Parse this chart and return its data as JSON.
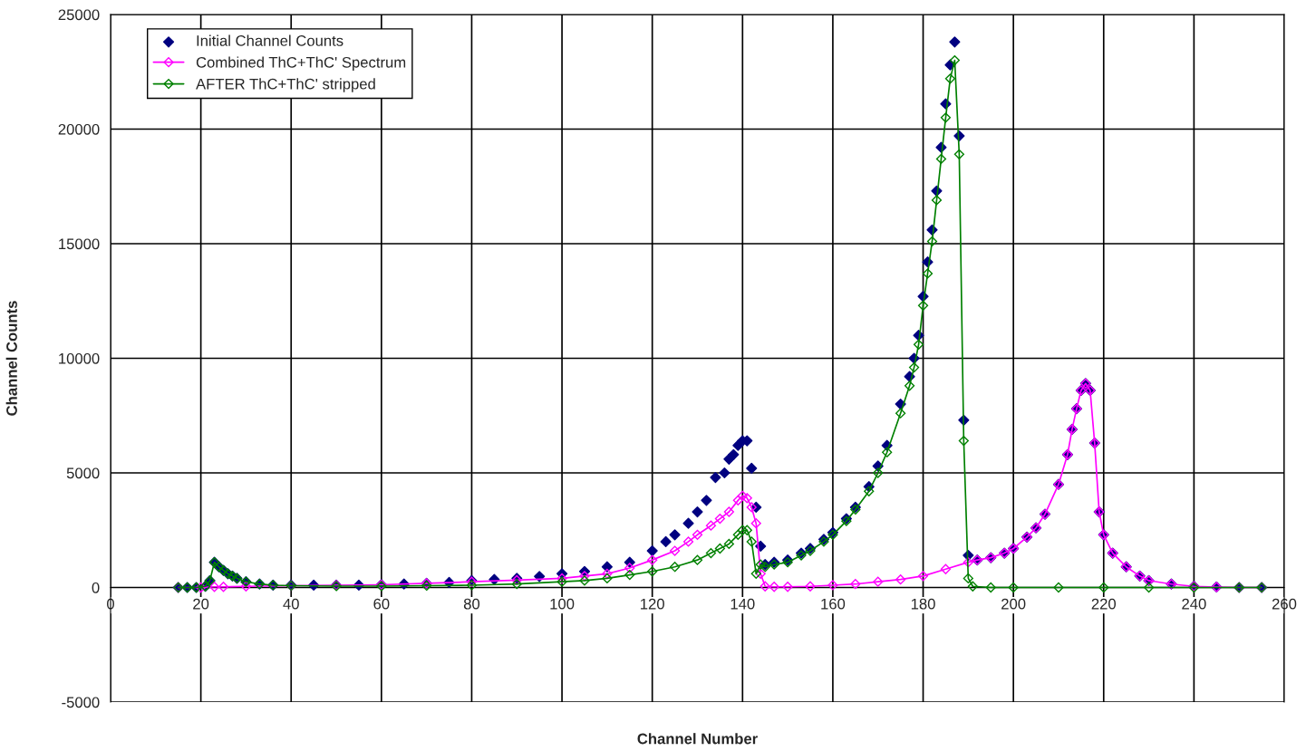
{
  "chart_data": {
    "type": "line",
    "xlabel": "Channel Number",
    "ylabel": "Channel Counts",
    "xlim": [
      0,
      260
    ],
    "xticks": [
      0,
      20,
      40,
      60,
      80,
      100,
      120,
      140,
      160,
      180,
      200,
      220,
      240,
      260
    ],
    "ylim": [
      -5000,
      25000
    ],
    "yticks": [
      -5000,
      0,
      5000,
      10000,
      15000,
      20000,
      25000
    ],
    "grid": true,
    "legend": "top left",
    "marker": "diamond",
    "series": [
      {
        "name": "Initial Channel Counts",
        "type": "scatter",
        "color": "#000080",
        "x": [
          15,
          17,
          19,
          21,
          22,
          23,
          24,
          25,
          26,
          27,
          28,
          30,
          33,
          36,
          40,
          45,
          50,
          55,
          60,
          65,
          70,
          75,
          80,
          85,
          90,
          95,
          100,
          105,
          110,
          115,
          120,
          123,
          125,
          128,
          130,
          132,
          134,
          136,
          137,
          138,
          139,
          140,
          141,
          142,
          143,
          144,
          145,
          147,
          150,
          153,
          155,
          158,
          160,
          163,
          165,
          168,
          170,
          172,
          175,
          177,
          178,
          179,
          180,
          181,
          182,
          183,
          184,
          185,
          186,
          187,
          188,
          189,
          190,
          192,
          195,
          198,
          200,
          203,
          205,
          207,
          210,
          212,
          213,
          214,
          215,
          216,
          217,
          218,
          219,
          220,
          222,
          225,
          228,
          230,
          235,
          240,
          245,
          250,
          255
        ],
        "values": [
          0,
          0,
          0,
          50,
          300,
          1100,
          900,
          750,
          600,
          500,
          400,
          250,
          150,
          100,
          100,
          100,
          100,
          100,
          120,
          150,
          180,
          220,
          300,
          350,
          400,
          480,
          600,
          700,
          900,
          1100,
          1600,
          2000,
          2300,
          2800,
          3300,
          3800,
          4800,
          5000,
          5600,
          5800,
          6200,
          6400,
          6400,
          5200,
          3500,
          1800,
          1000,
          1100,
          1200,
          1500,
          1700,
          2100,
          2400,
          3000,
          3500,
          4400,
          5300,
          6200,
          8000,
          9200,
          10000,
          11000,
          12700,
          14200,
          15600,
          17300,
          19200,
          21100,
          22800,
          23800,
          19700,
          7300,
          1400,
          1200,
          1300,
          1500,
          1700,
          2200,
          2600,
          3200,
          4500,
          5800,
          6900,
          7800,
          8600,
          8900,
          8600,
          6300,
          3300,
          2300,
          1500,
          900,
          500,
          300,
          150,
          50,
          20,
          0,
          0
        ]
      },
      {
        "name": "Combined ThC+ThC' Spectrum",
        "color": "#ff00ff",
        "x": [
          15,
          20,
          23,
          25,
          30,
          40,
          50,
          60,
          70,
          80,
          90,
          100,
          105,
          110,
          115,
          120,
          125,
          128,
          130,
          133,
          135,
          137,
          139,
          140,
          141,
          142,
          143,
          144,
          145,
          147,
          150,
          155,
          160,
          165,
          170,
          175,
          180,
          185,
          190,
          192,
          195,
          198,
          200,
          203,
          205,
          207,
          210,
          212,
          213,
          214,
          215,
          216,
          217,
          218,
          219,
          220,
          222,
          225,
          228,
          230,
          235,
          240,
          245,
          250,
          255
        ],
        "values": [
          0,
          0,
          30,
          30,
          50,
          80,
          100,
          120,
          180,
          250,
          320,
          400,
          500,
          600,
          850,
          1200,
          1600,
          2000,
          2300,
          2700,
          3000,
          3300,
          3800,
          4000,
          3900,
          3500,
          2800,
          600,
          50,
          30,
          30,
          50,
          100,
          150,
          250,
          350,
          500,
          800,
          1100,
          1200,
          1300,
          1500,
          1700,
          2200,
          2600,
          3200,
          4500,
          5800,
          6900,
          7800,
          8600,
          8900,
          8600,
          6300,
          3300,
          2300,
          1500,
          900,
          500,
          300,
          150,
          50,
          20,
          0,
          0
        ]
      },
      {
        "name": "AFTER ThC+ThC' stripped",
        "color": "#008000",
        "x": [
          15,
          17,
          19,
          21,
          22,
          23,
          24,
          25,
          26,
          27,
          28,
          30,
          33,
          36,
          40,
          50,
          60,
          70,
          80,
          90,
          100,
          105,
          110,
          115,
          120,
          125,
          130,
          133,
          135,
          137,
          139,
          140,
          141,
          142,
          143,
          144,
          145,
          147,
          150,
          153,
          155,
          158,
          160,
          163,
          165,
          168,
          170,
          172,
          175,
          177,
          178,
          179,
          180,
          181,
          182,
          183,
          184,
          185,
          186,
          187,
          188,
          189,
          190,
          191,
          195,
          200,
          210,
          220,
          230,
          240,
          250,
          255
        ],
        "values": [
          0,
          0,
          0,
          50,
          300,
          1100,
          900,
          750,
          600,
          500,
          400,
          250,
          150,
          100,
          80,
          60,
          60,
          80,
          100,
          150,
          250,
          300,
          400,
          550,
          700,
          900,
          1200,
          1500,
          1700,
          1900,
          2300,
          2500,
          2500,
          2000,
          600,
          1000,
          900,
          1000,
          1100,
          1400,
          1600,
          2000,
          2300,
          2900,
          3400,
          4200,
          5000,
          5900,
          7600,
          8800,
          9600,
          10600,
          12300,
          13700,
          15100,
          16900,
          18700,
          20500,
          22200,
          23000,
          18900,
          6400,
          400,
          50,
          0,
          0,
          0,
          0,
          0,
          0,
          0,
          0
        ]
      }
    ]
  }
}
